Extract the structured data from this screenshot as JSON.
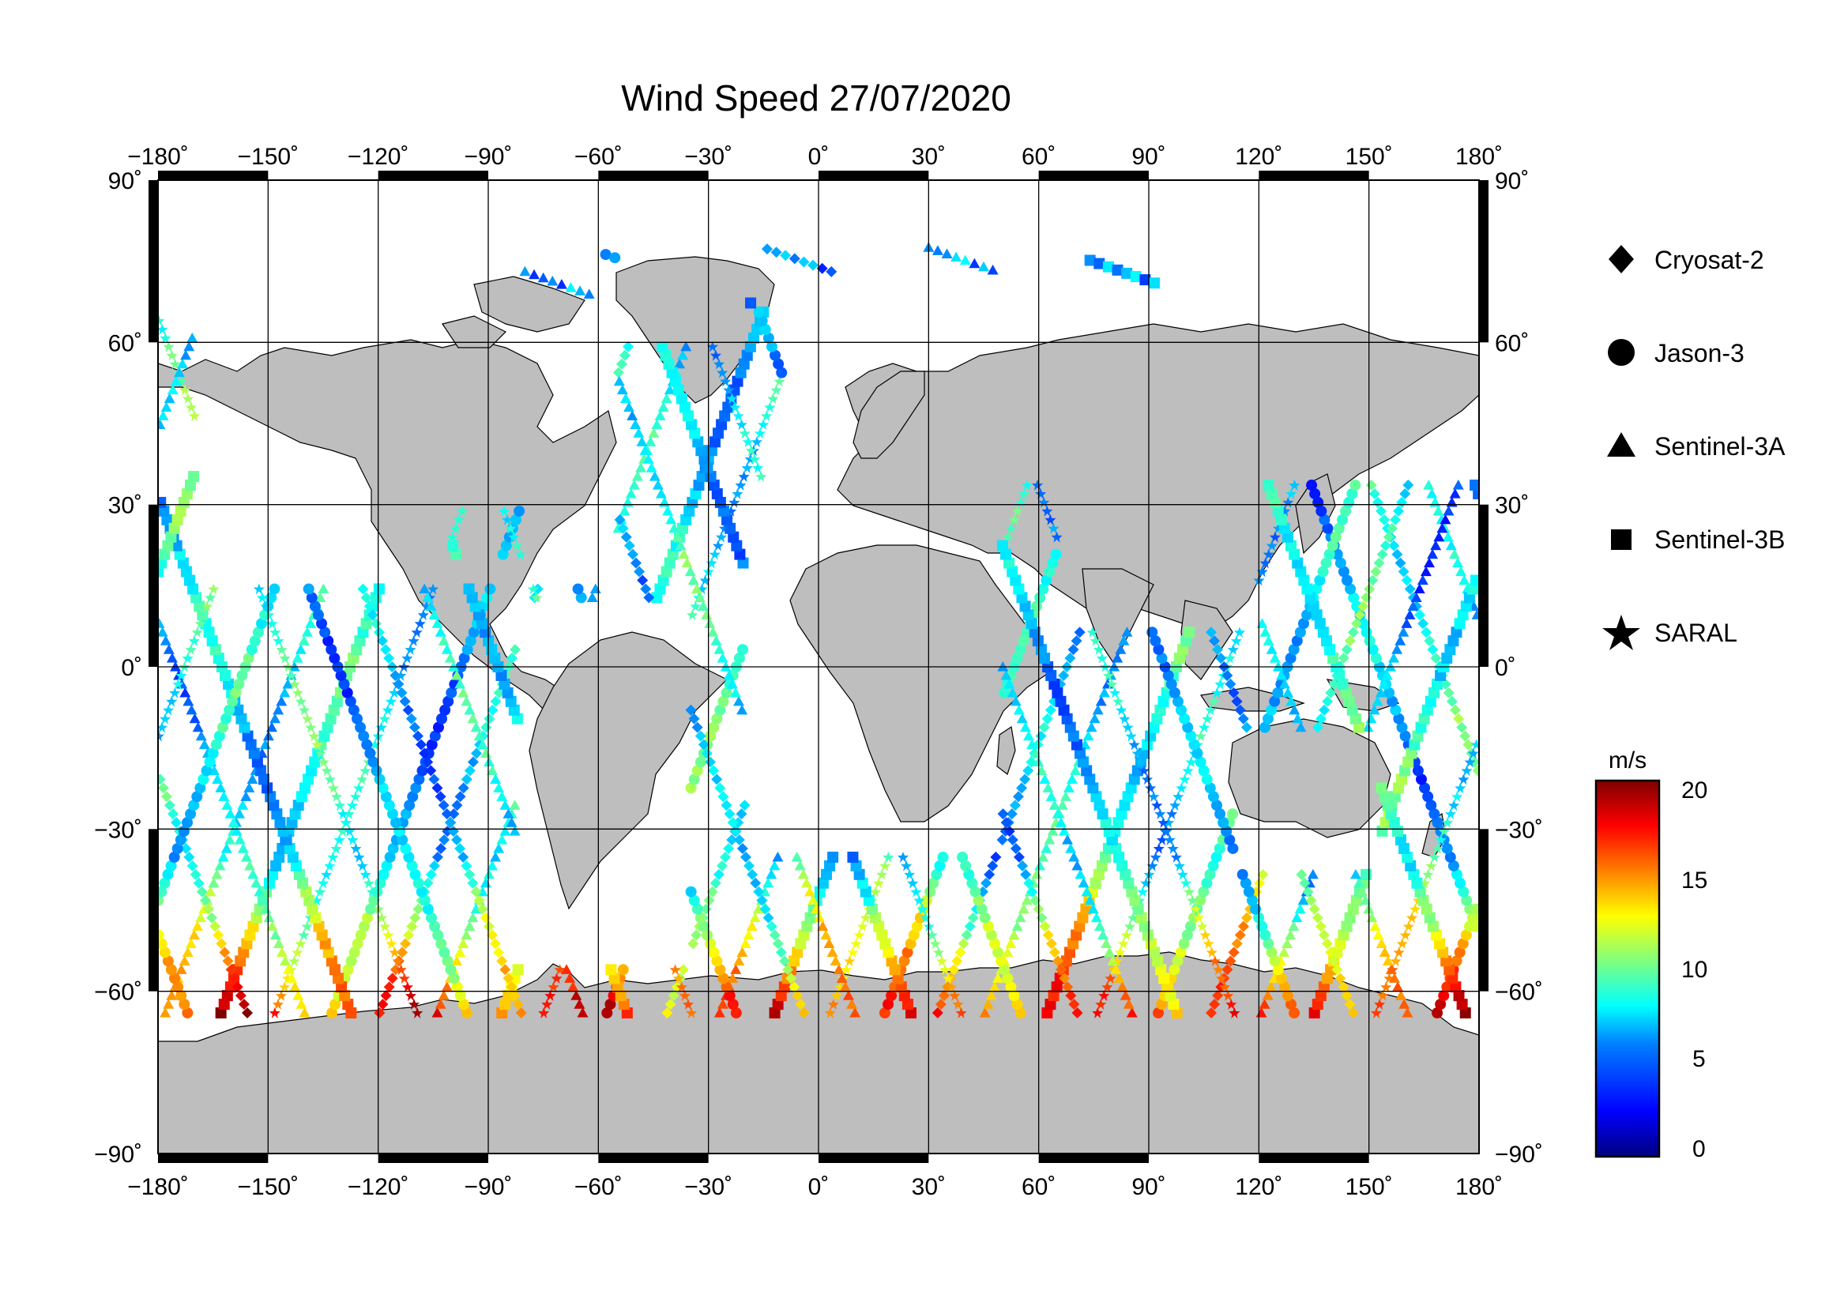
{
  "title": "Wind Speed 27/07/2020",
  "axes": {
    "lon_ticks": [
      "−180˚",
      "−150˚",
      "−120˚",
      "−90˚",
      "−60˚",
      "−30˚",
      "0˚",
      "30˚",
      "60˚",
      "90˚",
      "120˚",
      "150˚",
      "180˚"
    ],
    "lat_ticks": [
      "90˚",
      "60˚",
      "30˚",
      "0˚",
      "−30˚",
      "−60˚",
      "−90˚"
    ]
  },
  "legend": [
    {
      "label": "Cryosat-2",
      "symbol": "diamond"
    },
    {
      "label": "Jason-3",
      "symbol": "circle"
    },
    {
      "label": "Sentinel-3A",
      "symbol": "triangle"
    },
    {
      "label": "Sentinel-3B",
      "symbol": "square"
    },
    {
      "label": "SARAL",
      "symbol": "star"
    }
  ],
  "colorbar": {
    "unit": "m/s",
    "labels": [
      "20",
      "15",
      "10",
      "5",
      "0"
    ],
    "range": [
      0,
      21
    ],
    "colors": [
      "#00007f",
      "#0000ff",
      "#007fff",
      "#00ffff",
      "#7fff7f",
      "#ffff00",
      "#ff7f00",
      "#ff0000",
      "#7f0000"
    ]
  },
  "map_colors": {
    "land": "#bebebe",
    "ocean": "#ffffff",
    "coast": "#000000"
  }
}
